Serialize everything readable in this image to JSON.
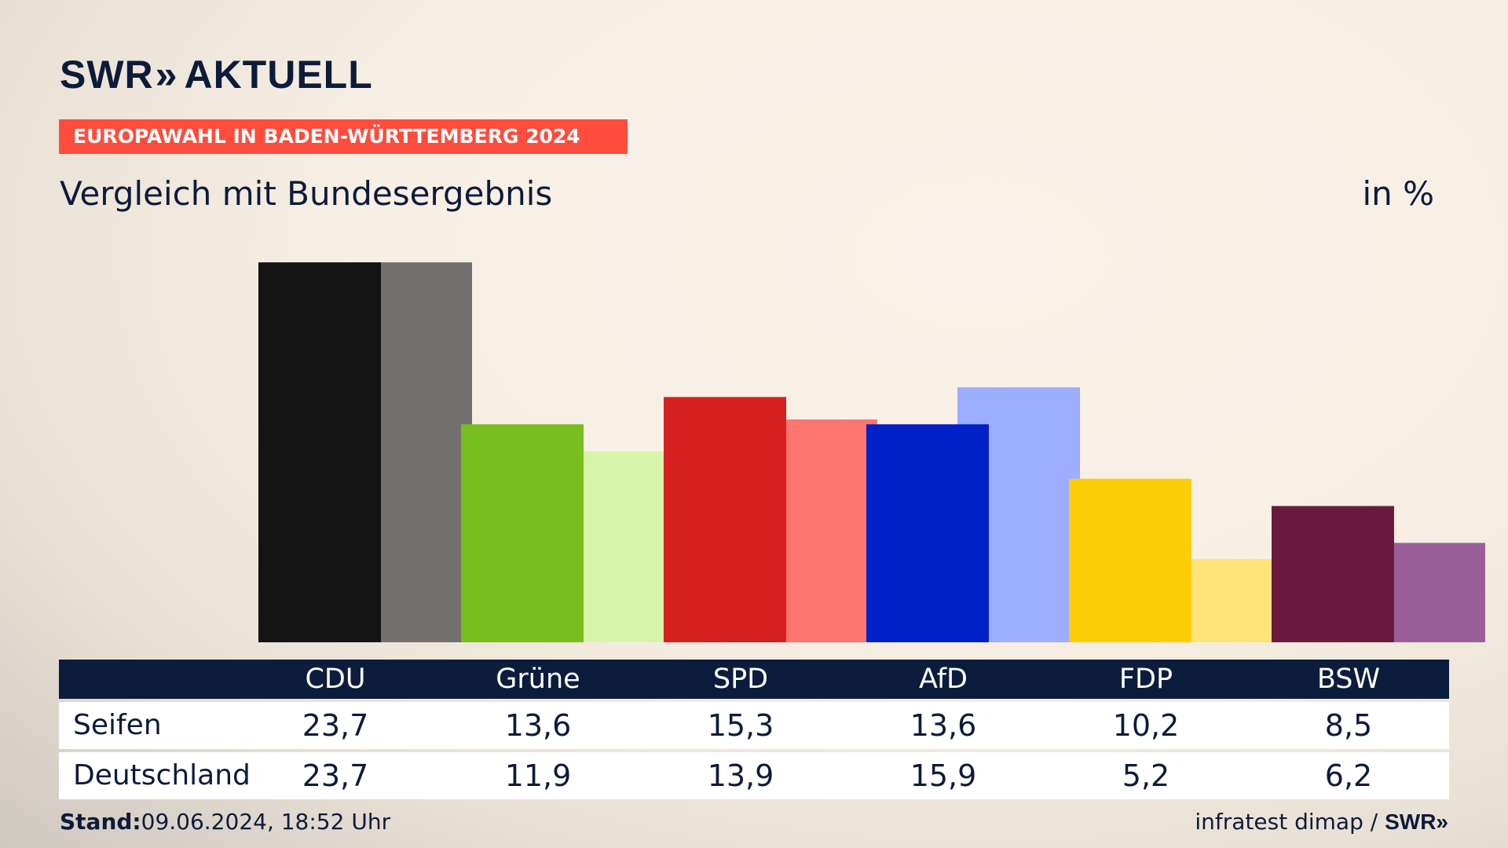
{
  "brand": {
    "name": "SWR",
    "chevrons": "»",
    "product": "AKTUELL"
  },
  "banner": "EUROPAWAHL IN BADEN-WÜRTTEMBERG 2024",
  "subtitle": "Vergleich mit Bundesergebnis",
  "unit": "in %",
  "footer": {
    "stand_label": "Stand:",
    "stand_value": "09.06.2024, 18:52 Uhr",
    "source": "infratest dimap /",
    "source_brand": "SWR»"
  },
  "chart_data": {
    "type": "bar",
    "categories": [
      "CDU",
      "Grüne",
      "SPD",
      "AfD",
      "FDP",
      "BSW"
    ],
    "series": [
      {
        "name": "Seifen",
        "values": [
          23.7,
          13.6,
          15.3,
          13.6,
          10.2,
          8.5
        ],
        "colors": [
          "#141414",
          "#78be1e",
          "#d62020",
          "#0021c8",
          "#ffcc0a",
          "#6b1a3f"
        ]
      },
      {
        "name": "Deutschland",
        "values": [
          23.7,
          11.9,
          13.9,
          15.9,
          5.2,
          6.2
        ],
        "colors": [
          "#737170",
          "#d7f5aa",
          "#ff7570",
          "#9dadff",
          "#ffe47a",
          "#9a5f9a"
        ]
      }
    ],
    "value_labels": {
      "Seifen": [
        "23,7",
        "13,6",
        "15,3",
        "13,6",
        "10,2",
        "8,5"
      ],
      "Deutschland": [
        "23,7",
        "11,9",
        "13,9",
        "15,9",
        "5,2",
        "6,2"
      ]
    },
    "ylim": [
      0,
      24
    ]
  }
}
